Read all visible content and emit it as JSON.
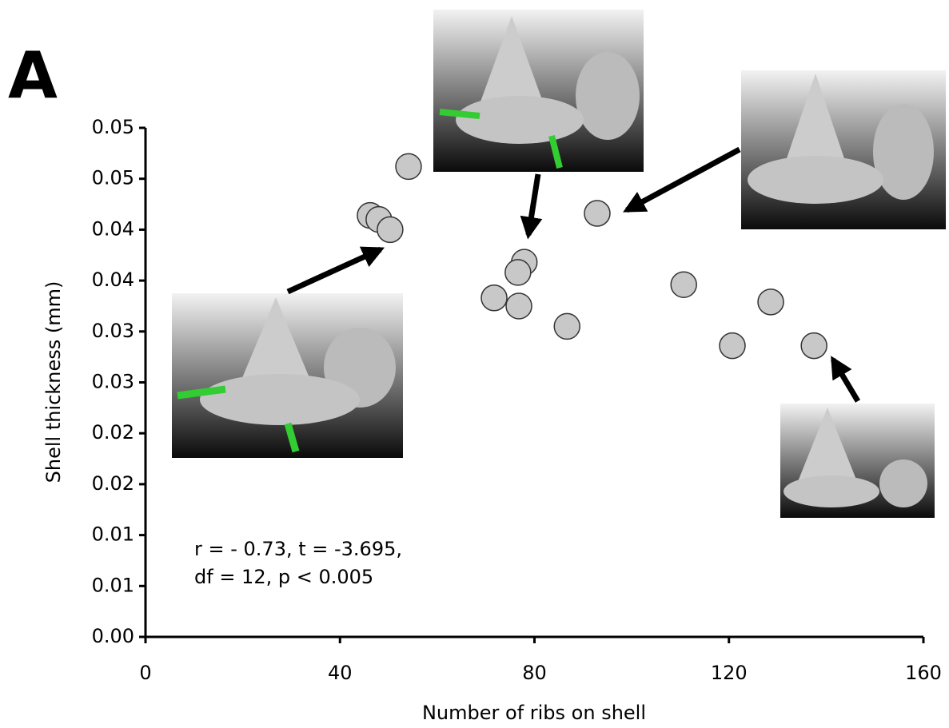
{
  "chart_data": {
    "type": "scatter",
    "panel_label": "A",
    "x_label": "Number of ribs on shell",
    "y_label": "Shell thickness (mm)",
    "annotation": [
      "r = - 0.73, t = -3.695,",
      "df = 12, p < 0.005"
    ],
    "x": [
      54.1,
      46.2,
      48.0,
      50.3,
      92.9,
      77.9,
      76.6,
      71.7,
      76.8,
      86.7,
      110.7,
      128.6,
      120.7,
      137.5
    ],
    "y": [
      0.0462,
      0.0414,
      0.041,
      0.04,
      0.0416,
      0.0368,
      0.0358,
      0.0333,
      0.0325,
      0.0305,
      0.0346,
      0.0329,
      0.0286,
      0.0286
    ],
    "color": "#c8c8c8",
    "xlim": [
      0,
      160
    ],
    "xticks": [
      0,
      40,
      80,
      120,
      160
    ],
    "ylim": [
      0,
      0.05
    ],
    "yticks": [
      {
        "value": 0,
        "label": "0.00"
      },
      {
        "value": 0.005,
        "label": "0.01"
      },
      0.01,
      {
        "value": 0.015,
        "label": "0.02"
      },
      0.02,
      {
        "value": 0.025,
        "label": "0.03"
      },
      0.03,
      {
        "value": 0.035,
        "label": "0.04"
      },
      0.04,
      {
        "value": 0.045,
        "label": "0.05"
      },
      0.05
    ],
    "grid": false
  }
}
